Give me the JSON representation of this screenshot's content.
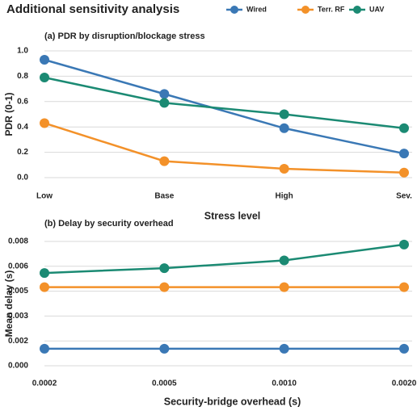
{
  "title": "Additional sensitivity analysis",
  "chart_data": [
    {
      "type": "line",
      "title": "(a) PDR by disruption/blockage stress",
      "x_label": "Stress level",
      "y_label": "PDR (0-1)",
      "categories": [
        "Low",
        "Base",
        "High",
        "Sev."
      ],
      "ylim": [
        0,
        1
      ],
      "yticks": [
        {
          "value": 0,
          "label": "0.0"
        },
        0.2,
        0.4,
        0.6,
        0.8,
        {
          "value": 1,
          "label": "1.0"
        }
      ],
      "grid": true,
      "series": [
        {
          "name": "Wired",
          "color": "#3a78b5",
          "values": [
            0.93,
            0.66,
            0.39,
            0.19
          ]
        },
        {
          "name": "Terr. RF",
          "color": "#f39129",
          "values": [
            0.43,
            0.13,
            0.07,
            0.04
          ]
        },
        {
          "name": "UAV",
          "color": "#1b8a73",
          "values": [
            0.79,
            0.59,
            0.5,
            0.39
          ]
        }
      ]
    },
    {
      "type": "line",
      "title": "(b) Delay by security overhead",
      "x_label": "Security-bridge overhead (s)",
      "y_label": "Mean delay (s)",
      "categories": [
        "0.0002",
        "0.0005",
        "0.0010",
        "0.0020"
      ],
      "ylim": [
        0,
        0.008
      ],
      "yticks": [
        {
          "value": 0,
          "label": "0.000"
        },
        {
          "value": 0.0016,
          "label": "0.002"
        },
        {
          "value": 0.0032,
          "label": "0.003"
        },
        {
          "value": 0.0048,
          "label": "0.005"
        },
        {
          "value": 0.0064,
          "label": "0.006"
        },
        {
          "value": 0.008,
          "label": "0.008"
        }
      ],
      "grid": true,
      "series": [
        {
          "color": "#3a78b5",
          "values": [
            0.0011,
            0.0011,
            0.0011,
            0.0011
          ]
        },
        {
          "color": "#f39129",
          "values": [
            0.00506,
            0.00506,
            0.00506,
            0.00506
          ]
        },
        {
          "color": "#1b8a73",
          "values": [
            0.00597,
            0.00628,
            0.00678,
            0.0078
          ]
        }
      ]
    }
  ]
}
